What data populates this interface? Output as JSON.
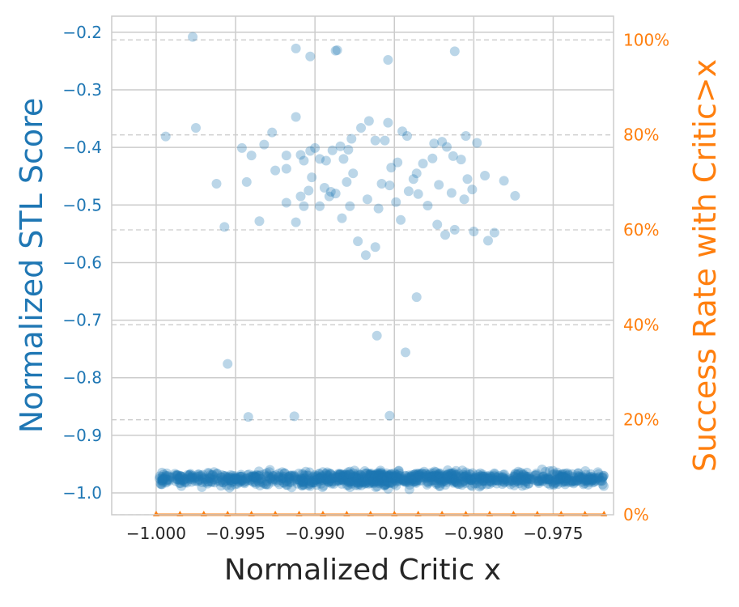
{
  "chart_data": {
    "type": "scatter",
    "xlabel": "Normalized Critic x",
    "ylabel": "Normalized STL Score",
    "y2label": "Success Rate with Critic>x",
    "xlim": [
      -1.0028,
      -0.9712
    ],
    "ylim": [
      -1.038,
      -0.172
    ],
    "y2lim": [
      0,
      105
    ],
    "x_ticks": [
      -1.0,
      -0.995,
      -0.99,
      -0.985,
      -0.98,
      -0.975
    ],
    "x_tick_labels": [
      "−1.000",
      "−0.995",
      "−0.990",
      "−0.985",
      "−0.980",
      "−0.975"
    ],
    "y_ticks": [
      -1.0,
      -0.9,
      -0.8,
      -0.7,
      -0.6,
      -0.5,
      -0.4,
      -0.3,
      -0.2
    ],
    "y_tick_labels": [
      "−1.0",
      "−0.9",
      "−0.8",
      "−0.7",
      "−0.6",
      "−0.5",
      "−0.4",
      "−0.3",
      "−0.2"
    ],
    "y2_ticks": [
      0,
      20,
      40,
      60,
      80,
      100
    ],
    "y2_tick_labels": [
      "0%",
      "20%",
      "40%",
      "60%",
      "80%",
      "100%"
    ],
    "grid": true,
    "grid_dashed_y2": [
      0,
      20,
      40,
      60,
      80,
      100
    ],
    "series": [
      {
        "kind": "scatter",
        "axis": "left",
        "color": "#1f77b4",
        "alpha": 0.3,
        "points": [
          [
            -0.9977,
            -0.208
          ],
          [
            -0.9912,
            -0.228
          ],
          [
            -0.9903,
            -0.242
          ],
          [
            -0.9886,
            -0.231
          ],
          [
            -0.9887,
            -0.232
          ],
          [
            -0.9854,
            -0.248
          ],
          [
            -0.9812,
            -0.233
          ],
          [
            -0.9994,
            -0.381
          ],
          [
            -0.9975,
            -0.366
          ],
          [
            -0.9946,
            -0.401
          ],
          [
            -0.994,
            -0.414
          ],
          [
            -0.9932,
            -0.395
          ],
          [
            -0.9927,
            -0.374
          ],
          [
            -0.9925,
            -0.44
          ],
          [
            -0.9918,
            -0.414
          ],
          [
            -0.9918,
            -0.437
          ],
          [
            -0.9907,
            -0.423
          ],
          [
            -0.9912,
            -0.347
          ],
          [
            -0.9909,
            -0.413
          ],
          [
            -0.9903,
            -0.406
          ],
          [
            -0.99,
            -0.401
          ],
          [
            -0.9897,
            -0.42
          ],
          [
            -0.9893,
            -0.423
          ],
          [
            -0.9889,
            -0.405
          ],
          [
            -0.9884,
            -0.398
          ],
          [
            -0.9882,
            -0.42
          ],
          [
            -0.9879,
            -0.404
          ],
          [
            -0.9877,
            -0.385
          ],
          [
            -0.9876,
            -0.445
          ],
          [
            -0.9871,
            -0.366
          ],
          [
            -0.9866,
            -0.354
          ],
          [
            -0.9862,
            -0.388
          ],
          [
            -0.9856,
            -0.388
          ],
          [
            -0.9854,
            -0.357
          ],
          [
            -0.9852,
            -0.435
          ],
          [
            -0.9848,
            -0.426
          ],
          [
            -0.9845,
            -0.372
          ],
          [
            -0.9842,
            -0.38
          ],
          [
            -0.9836,
            -0.445
          ],
          [
            -0.9832,
            -0.428
          ],
          [
            -0.9826,
            -0.419
          ],
          [
            -0.9825,
            -0.393
          ],
          [
            -0.982,
            -0.39
          ],
          [
            -0.9817,
            -0.399
          ],
          [
            -0.9813,
            -0.415
          ],
          [
            -0.9808,
            -0.421
          ],
          [
            -0.9805,
            -0.38
          ],
          [
            -0.9798,
            -0.392
          ],
          [
            -0.9793,
            -0.449
          ],
          [
            -0.9781,
            -0.458
          ],
          [
            -0.9774,
            -0.484
          ],
          [
            -0.9962,
            -0.463
          ],
          [
            -0.9957,
            -0.538
          ],
          [
            -0.9943,
            -0.46
          ],
          [
            -0.9935,
            -0.528
          ],
          [
            -0.9918,
            -0.496
          ],
          [
            -0.9912,
            -0.53
          ],
          [
            -0.9909,
            -0.485
          ],
          [
            -0.9904,
            -0.475
          ],
          [
            -0.9902,
            -0.452
          ],
          [
            -0.9897,
            -0.502
          ],
          [
            -0.9894,
            -0.47
          ],
          [
            -0.989,
            -0.477
          ],
          [
            -0.9887,
            -0.48
          ],
          [
            -0.9883,
            -0.523
          ],
          [
            -0.9878,
            -0.502
          ],
          [
            -0.9873,
            -0.563
          ],
          [
            -0.9868,
            -0.587
          ],
          [
            -0.9862,
            -0.573
          ],
          [
            -0.9858,
            -0.463
          ],
          [
            -0.9853,
            -0.466
          ],
          [
            -0.9849,
            -0.495
          ],
          [
            -0.9846,
            -0.526
          ],
          [
            -0.9841,
            -0.476
          ],
          [
            -0.9835,
            -0.481
          ],
          [
            -0.9829,
            -0.501
          ],
          [
            -0.9823,
            -0.534
          ],
          [
            -0.9818,
            -0.552
          ],
          [
            -0.9814,
            -0.479
          ],
          [
            -0.9806,
            -0.49
          ],
          [
            -0.98,
            -0.546
          ],
          [
            -0.9791,
            -0.562
          ],
          [
            -0.9787,
            -0.548
          ],
          [
            -0.9812,
            -0.543
          ],
          [
            -0.9804,
            -0.455
          ],
          [
            -0.9801,
            -0.473
          ],
          [
            -0.9836,
            -0.66
          ],
          [
            -0.9955,
            -0.776
          ],
          [
            -0.9861,
            -0.727
          ],
          [
            -0.9843,
            -0.756
          ],
          [
            -0.9942,
            -0.868
          ],
          [
            -0.9913,
            -0.867
          ],
          [
            -0.9853,
            -0.866
          ],
          [
            -0.9907,
            -0.502
          ],
          [
            -0.9891,
            -0.485
          ],
          [
            -0.988,
            -0.46
          ],
          [
            -0.9867,
            -0.49
          ],
          [
            -0.986,
            -0.506
          ],
          [
            -0.9838,
            -0.455
          ],
          [
            -0.9822,
            -0.465
          ]
        ],
        "dense_band": {
          "x_range": [
            -0.9998,
            -0.9718
          ],
          "y_center": -0.975,
          "y_spread": 0.025,
          "count": 1200
        }
      },
      {
        "kind": "line",
        "axis": "right",
        "color": "#ff7f0e",
        "marker": "^",
        "x": [
          -1.0,
          -0.9985,
          -0.997,
          -0.9955,
          -0.994,
          -0.9925,
          -0.991,
          -0.9895,
          -0.988,
          -0.9865,
          -0.985,
          -0.9835,
          -0.982,
          -0.9805,
          -0.979,
          -0.9775,
          -0.976,
          -0.9745,
          -0.973,
          -0.9718
        ],
        "y": [
          0,
          0,
          0,
          0,
          0,
          0,
          0,
          0,
          0,
          0,
          0,
          0,
          0,
          0,
          0,
          0,
          0,
          0,
          0,
          0
        ]
      }
    ]
  }
}
